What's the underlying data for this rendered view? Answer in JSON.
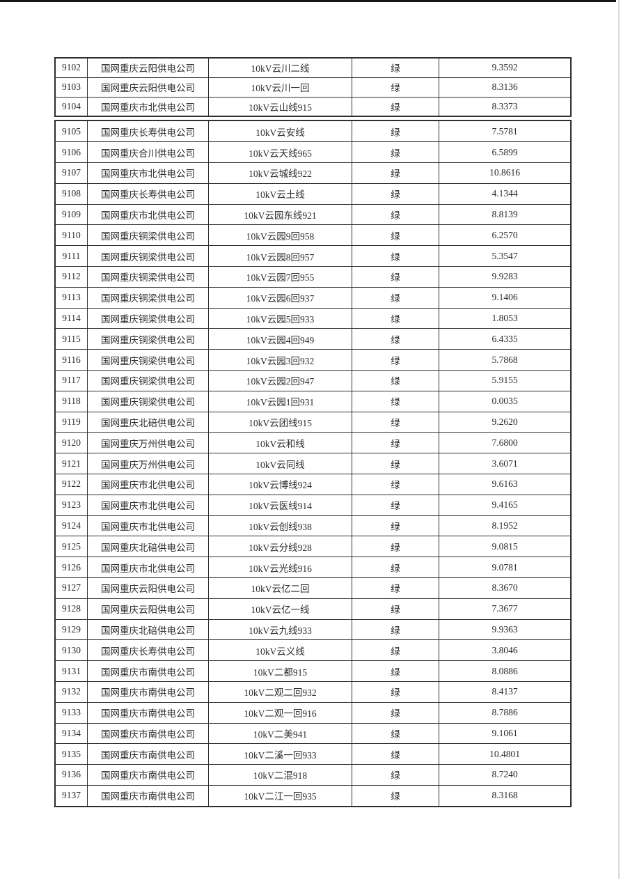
{
  "page": {
    "background": "#ffffff",
    "top_edge_color": "#141414",
    "right_edge_color": "#d9d9d9"
  },
  "table": {
    "grid_color": "#2e2e2e",
    "text_color": "#2b2b2b",
    "status_label_all_rows": "绿",
    "columns": [
      "id",
      "company",
      "line_name",
      "status",
      "value"
    ],
    "segments": [
      {
        "rows": [
          [
            "9102",
            "国网重庆云阳供电公司",
            "10kV云川二线",
            "绿",
            "9.3592"
          ],
          [
            "9103",
            "国网重庆云阳供电公司",
            "10kV云川一回",
            "绿",
            "8.3136"
          ],
          [
            "9104",
            "国网重庆市北供电公司",
            "10kV云山线915",
            "绿",
            "8.3373"
          ]
        ]
      },
      {
        "rows": [
          [
            "9105",
            "国网重庆长寿供电公司",
            "10kV云安线",
            "绿",
            "7.5781"
          ],
          [
            "9106",
            "国网重庆合川供电公司",
            "10kV云天线965",
            "绿",
            "6.5899"
          ],
          [
            "9107",
            "国网重庆市北供电公司",
            "10kV云城线922",
            "绿",
            "10.8616"
          ],
          [
            "9108",
            "国网重庆长寿供电公司",
            "10kV云土线",
            "绿",
            "4.1344"
          ],
          [
            "9109",
            "国网重庆市北供电公司",
            "10kV云园东线921",
            "绿",
            "8.8139"
          ],
          [
            "9110",
            "国网重庆铜梁供电公司",
            "10kV云园9回958",
            "绿",
            "6.2570"
          ],
          [
            "9111",
            "国网重庆铜梁供电公司",
            "10kV云园8回957",
            "绿",
            "5.3547"
          ],
          [
            "9112",
            "国网重庆铜梁供电公司",
            "10kV云园7回955",
            "绿",
            "9.9283"
          ],
          [
            "9113",
            "国网重庆铜梁供电公司",
            "10kV云园6回937",
            "绿",
            "9.1406"
          ],
          [
            "9114",
            "国网重庆铜梁供电公司",
            "10kV云园5回933",
            "绿",
            "1.8053"
          ],
          [
            "9115",
            "国网重庆铜梁供电公司",
            "10kV云园4回949",
            "绿",
            "6.4335"
          ],
          [
            "9116",
            "国网重庆铜梁供电公司",
            "10kV云园3回932",
            "绿",
            "5.7868"
          ],
          [
            "9117",
            "国网重庆铜梁供电公司",
            "10kV云园2回947",
            "绿",
            "5.9155"
          ],
          [
            "9118",
            "国网重庆铜梁供电公司",
            "10kV云园1回931",
            "绿",
            "0.0035"
          ],
          [
            "9119",
            "国网重庆北碚供电公司",
            "10kV云团线915",
            "绿",
            "9.2620"
          ],
          [
            "9120",
            "国网重庆万州供电公司",
            "10kV云和线",
            "绿",
            "7.6800"
          ],
          [
            "9121",
            "国网重庆万州供电公司",
            "10kV云同线",
            "绿",
            "3.6071"
          ],
          [
            "9122",
            "国网重庆市北供电公司",
            "10kV云博线924",
            "绿",
            "9.6163"
          ],
          [
            "9123",
            "国网重庆市北供电公司",
            "10kV云医线914",
            "绿",
            "9.4165"
          ],
          [
            "9124",
            "国网重庆市北供电公司",
            "10kV云创线938",
            "绿",
            "8.1952"
          ],
          [
            "9125",
            "国网重庆北碚供电公司",
            "10kV云分线928",
            "绿",
            "9.0815"
          ],
          [
            "9126",
            "国网重庆市北供电公司",
            "10kV云光线916",
            "绿",
            "9.0781"
          ],
          [
            "9127",
            "国网重庆云阳供电公司",
            "10kV云亿二回",
            "绿",
            "8.3670"
          ],
          [
            "9128",
            "国网重庆云阳供电公司",
            "10kV云亿一线",
            "绿",
            "7.3677"
          ],
          [
            "9129",
            "国网重庆北碚供电公司",
            "10kV云九线933",
            "绿",
            "9.9363"
          ],
          [
            "9130",
            "国网重庆长寿供电公司",
            "10kV云义线",
            "绿",
            "3.8046"
          ],
          [
            "9131",
            "国网重庆市南供电公司",
            "10kV二都915",
            "绿",
            "8.0886"
          ],
          [
            "9132",
            "国网重庆市南供电公司",
            "10kV二观二回932",
            "绿",
            "8.4137"
          ],
          [
            "9133",
            "国网重庆市南供电公司",
            "10kV二观一回916",
            "绿",
            "8.7886"
          ],
          [
            "9134",
            "国网重庆市南供电公司",
            "10kV二美941",
            "绿",
            "9.1061"
          ],
          [
            "9135",
            "国网重庆市南供电公司",
            "10kV二溪一回933",
            "绿",
            "10.4801"
          ],
          [
            "9136",
            "国网重庆市南供电公司",
            "10kV二混918",
            "绿",
            "8.7240"
          ],
          [
            "9137",
            "国网重庆市南供电公司",
            "10kV二江一回935",
            "绿",
            "8.3168"
          ]
        ]
      }
    ]
  }
}
